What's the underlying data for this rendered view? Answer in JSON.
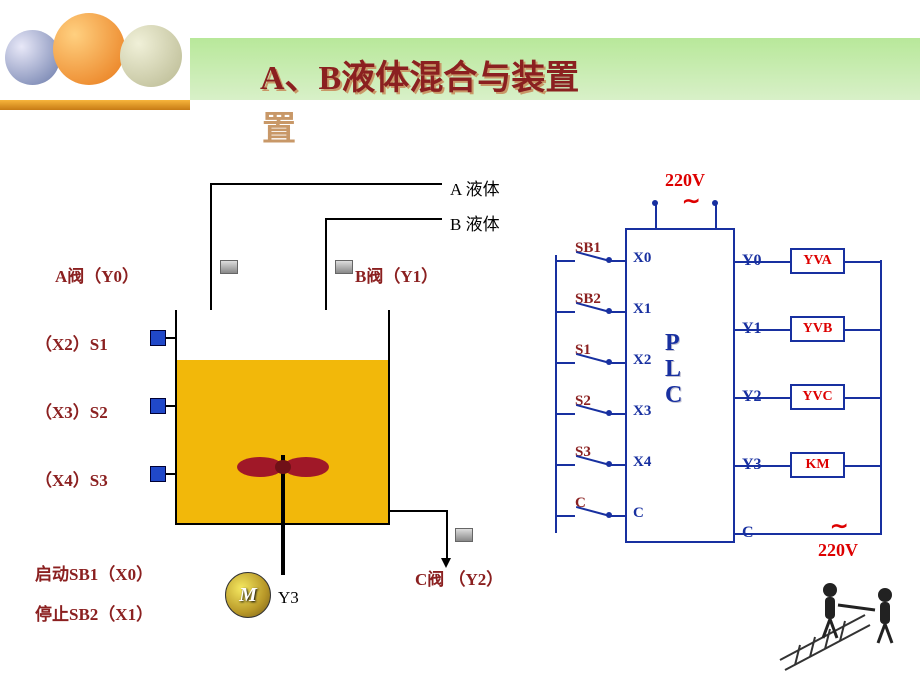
{
  "title": "A、B液体混合与装置",
  "colors": {
    "title": "#8b2020",
    "title_shadow": "#c89868",
    "header_grad_top": "#b8e89a",
    "header_grad_bot": "#d8f0c8",
    "liquid": "#f2b80a",
    "sensor": "#2048c8",
    "plc_border": "#1830a0",
    "output_text": "#d00000"
  },
  "tank": {
    "label_a_valve": "A阀（Y0）",
    "label_b_valve": "B阀（Y1）",
    "label_c_valve": "C阀 （Y2）",
    "liquid_a": "A 液体",
    "liquid_b": "B 液体",
    "sensors": [
      {
        "label": "（X2）S1"
      },
      {
        "label": "（X3）S2"
      },
      {
        "label": "（X4）S3"
      }
    ],
    "start": "启动SB1（X0）",
    "stop": "停止SB2（X1）",
    "motor": "M",
    "motor_out": "Y3"
  },
  "plc": {
    "label": "PLC",
    "voltage": "220V",
    "inputs": [
      {
        "sw": "SB1",
        "pin": "X0"
      },
      {
        "sw": "SB2",
        "pin": "X1"
      },
      {
        "sw": "S1",
        "pin": "X2"
      },
      {
        "sw": "S2",
        "pin": "X3"
      },
      {
        "sw": "S3",
        "pin": "X4"
      },
      {
        "sw": "C",
        "pin": "C"
      }
    ],
    "outputs": [
      {
        "pin": "Y0",
        "dev": "YVA"
      },
      {
        "pin": "Y1",
        "dev": "YVB"
      },
      {
        "pin": "Y2",
        "dev": "YVC"
      },
      {
        "pin": "Y3",
        "dev": "KM"
      },
      {
        "pin": "C",
        "dev": ""
      }
    ]
  }
}
